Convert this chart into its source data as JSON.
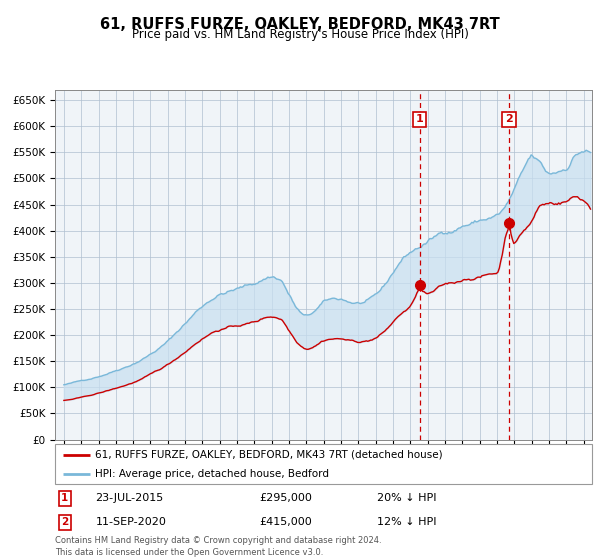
{
  "title": "61, RUFFS FURZE, OAKLEY, BEDFORD, MK43 7RT",
  "subtitle": "Price paid vs. HM Land Registry's House Price Index (HPI)",
  "hpi_label": "HPI: Average price, detached house, Bedford",
  "property_label": "61, RUFFS FURZE, OAKLEY, BEDFORD, MK43 7RT (detached house)",
  "sale1_date": "23-JUL-2015",
  "sale1_price": 295000,
  "sale1_note": "20% ↓ HPI",
  "sale2_date": "11-SEP-2020",
  "sale2_price": 415000,
  "sale2_note": "12% ↓ HPI",
  "sale1_x": 2015.55,
  "sale2_x": 2020.7,
  "hpi_color": "#7ab8d9",
  "hpi_fill_color": "#c8dff0",
  "property_color": "#cc0000",
  "bg_color": "#f0f4f8",
  "grid_color": "#b0c0d0",
  "ylim": [
    0,
    670000
  ],
  "xlim_start": 1994.5,
  "xlim_end": 2025.5,
  "yticks": [
    0,
    50000,
    100000,
    150000,
    200000,
    250000,
    300000,
    350000,
    400000,
    450000,
    500000,
    550000,
    600000,
    650000
  ],
  "xticks": [
    1995,
    1996,
    1997,
    1998,
    1999,
    2000,
    2001,
    2002,
    2003,
    2004,
    2005,
    2006,
    2007,
    2008,
    2009,
    2010,
    2011,
    2012,
    2013,
    2014,
    2015,
    2016,
    2017,
    2018,
    2019,
    2020,
    2021,
    2022,
    2023,
    2024,
    2025
  ],
  "footer": "Contains HM Land Registry data © Crown copyright and database right 2024.\nThis data is licensed under the Open Government Licence v3.0.",
  "hpi_keypoints_x": [
    1995.0,
    1996.0,
    1997.0,
    1998.0,
    1999.0,
    2000.0,
    2001.0,
    2002.0,
    2003.0,
    2004.0,
    2005.0,
    2006.0,
    2007.0,
    2007.5,
    2008.0,
    2008.5,
    2009.0,
    2009.5,
    2010.0,
    2010.5,
    2011.0,
    2011.5,
    2012.0,
    2012.5,
    2013.0,
    2013.5,
    2014.0,
    2014.5,
    2015.0,
    2015.5,
    2016.0,
    2016.5,
    2017.0,
    2017.5,
    2018.0,
    2018.5,
    2019.0,
    2019.5,
    2020.0,
    2020.5,
    2021.0,
    2021.5,
    2022.0,
    2022.5,
    2023.0,
    2023.5,
    2024.0,
    2024.5,
    2025.0
  ],
  "hpi_keypoints_y": [
    105000,
    112000,
    122000,
    135000,
    150000,
    170000,
    195000,
    230000,
    265000,
    290000,
    300000,
    310000,
    325000,
    320000,
    290000,
    260000,
    245000,
    255000,
    270000,
    275000,
    275000,
    270000,
    268000,
    270000,
    278000,
    295000,
    320000,
    345000,
    360000,
    370000,
    380000,
    390000,
    400000,
    405000,
    415000,
    420000,
    425000,
    430000,
    435000,
    450000,
    480000,
    510000,
    535000,
    520000,
    500000,
    505000,
    515000,
    540000,
    550000
  ],
  "prop_keypoints_x": [
    1995.0,
    1996.0,
    1997.0,
    1998.0,
    1999.0,
    2000.0,
    2001.0,
    2002.0,
    2003.0,
    2004.0,
    2005.0,
    2006.0,
    2007.0,
    2007.5,
    2008.0,
    2008.5,
    2009.0,
    2009.5,
    2010.0,
    2010.5,
    2011.0,
    2011.5,
    2012.0,
    2012.5,
    2013.0,
    2013.5,
    2014.0,
    2014.5,
    2015.0,
    2015.55,
    2016.0,
    2016.5,
    2017.0,
    2017.5,
    2018.0,
    2018.5,
    2019.0,
    2019.5,
    2020.0,
    2020.7,
    2021.0,
    2021.5,
    2022.0,
    2022.5,
    2023.0,
    2023.5,
    2024.0,
    2024.5,
    2025.0
  ],
  "prop_keypoints_y": [
    75000,
    80000,
    88000,
    97000,
    108000,
    122000,
    140000,
    165000,
    192000,
    210000,
    217000,
    224000,
    235000,
    232000,
    210000,
    188000,
    178000,
    185000,
    196000,
    200000,
    200000,
    196000,
    194000,
    196000,
    202000,
    214000,
    232000,
    250000,
    262000,
    295000,
    285000,
    292000,
    300000,
    303000,
    310000,
    315000,
    318000,
    322000,
    326000,
    415000,
    390000,
    410000,
    430000,
    460000,
    465000,
    468000,
    472000,
    480000,
    475000
  ]
}
